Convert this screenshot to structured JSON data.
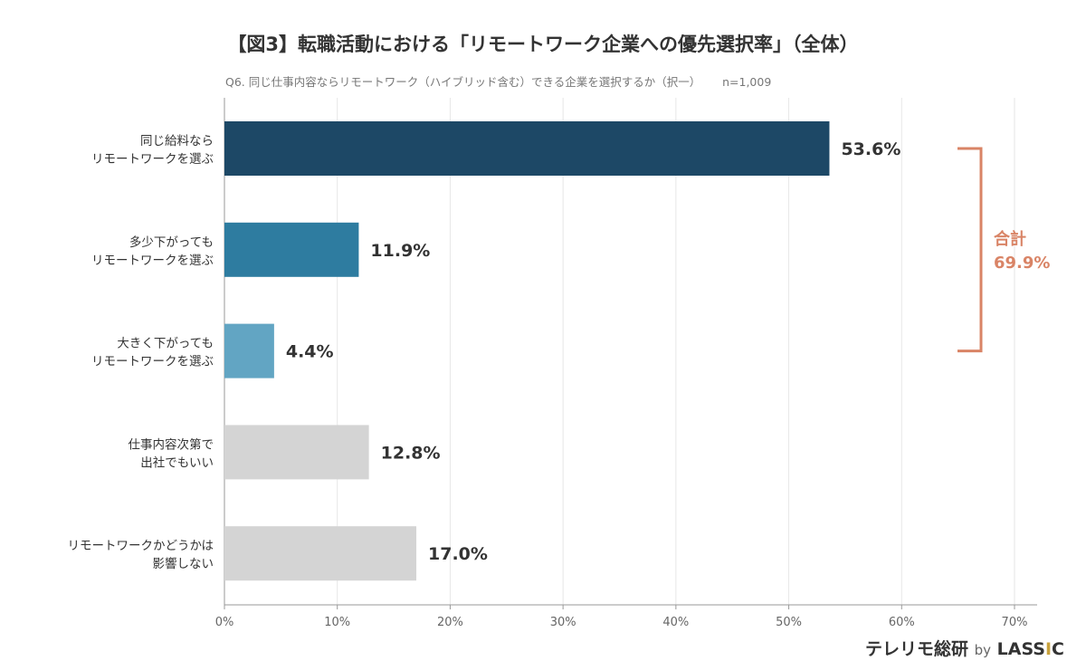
{
  "chart_data": {
    "type": "bar",
    "orientation": "horizontal",
    "title": "【図3】転職活動における「リモートワーク企業への優先選択率」（全体）",
    "subtitle": "Q6. 同じ仕事内容ならリモートワーク（ハイブリッド含む）できる企業を選択するか（択一）",
    "sample": "n=1,009",
    "categories": [
      [
        "同じ給料なら",
        "リモートワークを選ぶ"
      ],
      [
        "多少下がっても",
        "リモートワークを選ぶ"
      ],
      [
        "大きく下がっても",
        "リモートワークを選ぶ"
      ],
      [
        "仕事内容次第で",
        "出社でもいい"
      ],
      [
        "リモートワークかどうかは",
        "影響しない"
      ]
    ],
    "values": [
      53.6,
      11.9,
      4.4,
      12.8,
      17.0
    ],
    "data_labels": [
      "53.6%",
      "11.9%",
      "4.4%",
      "12.8%",
      "17.0%"
    ],
    "colors": [
      "#1d4866",
      "#2e7ca0",
      "#62a5c3",
      "#d4d4d4",
      "#d4d4d4"
    ],
    "xlim": [
      0,
      70
    ],
    "x_ticks": [
      "0%",
      "10%",
      "20%",
      "30%",
      "40%",
      "50%",
      "60%",
      "70%"
    ],
    "grid": true,
    "annotation": {
      "label": "合計",
      "value": "69.9%",
      "color": "#d98466",
      "spans_categories": [
        0,
        2
      ]
    }
  },
  "logo": {
    "name": "テレリモ総研",
    "by": "by",
    "brand_a": "LASS",
    "brand_i": "I",
    "brand_c": "C"
  }
}
